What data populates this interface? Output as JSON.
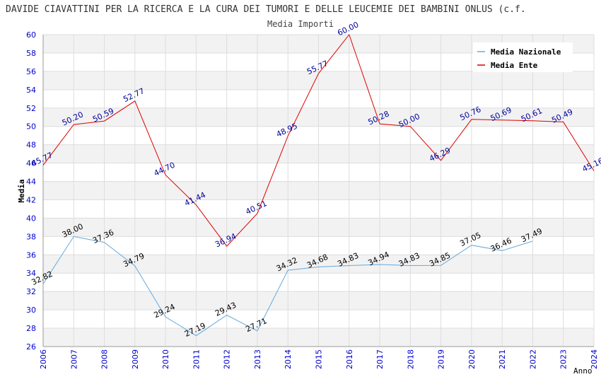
{
  "chart_data": {
    "type": "line",
    "title": "DAVIDE CIAVATTINI PER LA RICERCA E LA CURA DEI TUMORI E DELLE LEUCEMIE DEI BAMBINI ONLUS (c.f.",
    "subtitle": "Media Importi",
    "xlabel": "Anno",
    "ylabel": "Media",
    "ylim": [
      26,
      60
    ],
    "yticks": [
      "26",
      "28",
      "30",
      "32",
      "34",
      "36",
      "38",
      "40",
      "42",
      "44",
      "46",
      "48",
      "50",
      "52",
      "54",
      "56",
      "58",
      "60"
    ],
    "x": [
      "2006",
      "2007",
      "2008",
      "2009",
      "2010",
      "2011",
      "2012",
      "2013",
      "2014",
      "2015",
      "2016",
      "2017",
      "2018",
      "2019",
      "2020",
      "2021",
      "2022",
      "2023",
      "2024"
    ],
    "grid": true,
    "legend_position": "top-right",
    "series": [
      {
        "name": "Media Nazionale",
        "color": "#66aadd",
        "label_color": "#000000",
        "values": [
          32.82,
          38.0,
          37.36,
          34.79,
          29.24,
          27.19,
          29.43,
          27.71,
          34.32,
          34.68,
          34.83,
          34.94,
          34.83,
          34.85,
          37.05,
          36.46,
          37.49,
          null,
          null
        ],
        "labels": [
          "32.82",
          "38.00",
          "37.36",
          "34.79",
          "29.24",
          "27.19",
          "29.43",
          "27.71",
          "34.32",
          "34.68",
          "34.83",
          "34.94",
          "34.83",
          "34.85",
          "37.05",
          "36.46",
          "37.49",
          "",
          ""
        ]
      },
      {
        "name": "Media Ente",
        "color": "#dd0000",
        "label_color": "#000099",
        "values": [
          45.77,
          50.2,
          50.59,
          52.77,
          44.7,
          41.44,
          36.94,
          40.51,
          48.95,
          55.77,
          60.0,
          50.28,
          50.0,
          46.29,
          50.76,
          50.69,
          50.61,
          50.49,
          45.16
        ],
        "labels": [
          "45.77",
          "50.20",
          "50.59",
          "52.77",
          "44.70",
          "41.44",
          "36.94",
          "40.51",
          "48.95",
          "55.77",
          "60.00",
          "50.28",
          "50.00",
          "46.29",
          "50.76",
          "50.69",
          "50.61",
          "50.49",
          "45.16"
        ]
      }
    ]
  }
}
